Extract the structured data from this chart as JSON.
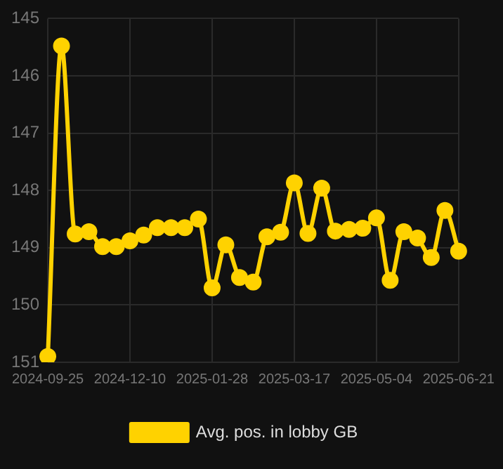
{
  "chart_data": {
    "type": "line",
    "categories": [
      "2024-09-25",
      null,
      null,
      null,
      null,
      null,
      "2024-12-10",
      null,
      null,
      null,
      null,
      null,
      "2025-01-28",
      null,
      null,
      null,
      null,
      null,
      "2025-03-17",
      null,
      null,
      null,
      null,
      null,
      "2025-05-04",
      null,
      null,
      null,
      null,
      null,
      "2025-06-21"
    ],
    "series": [
      {
        "name": "Avg. pos. in lobby GB",
        "color": "#ffd200",
        "values": [
          150.9,
          145.48,
          148.76,
          148.72,
          148.98,
          148.98,
          148.88,
          148.78,
          148.65,
          148.65,
          148.65,
          148.5,
          149.7,
          148.95,
          149.52,
          149.6,
          148.81,
          148.73,
          147.87,
          148.75,
          147.96,
          148.71,
          148.68,
          148.66,
          148.48,
          149.57,
          148.72,
          148.83,
          149.17,
          148.35,
          149.06
        ]
      }
    ],
    "ylim": [
      151,
      145
    ],
    "yticks": [
      145,
      146,
      147,
      148,
      149,
      150,
      151
    ],
    "grid": true,
    "legend": "bottom",
    "marker": "circle",
    "line_style": "solid"
  }
}
